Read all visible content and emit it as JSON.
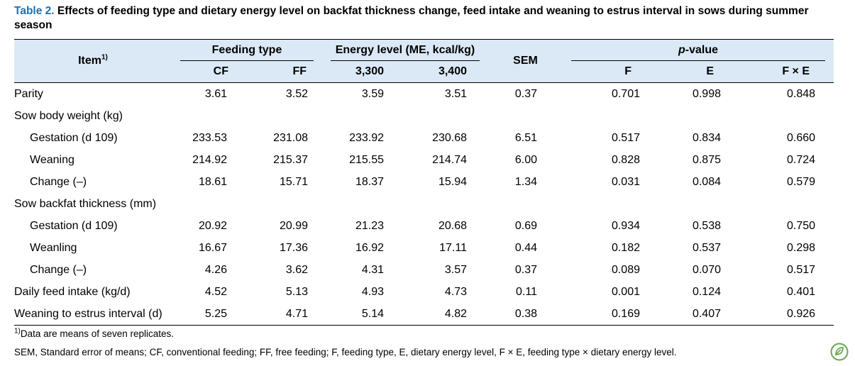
{
  "caption": {
    "label": "Table 2.",
    "text": " Effects of feeding type and dietary energy level on backfat thickness change, feed intake and weaning to estrus interval in sows during summer season"
  },
  "header": {
    "item": "Item",
    "item_sup": "1)",
    "feeding_type": "Feeding type",
    "energy_level": "Energy level (ME, kcal/kg)",
    "sem": "SEM",
    "p_value_italic": "p",
    "p_value_rest": "-value",
    "cf": "CF",
    "ff": "FF",
    "e3300": "3,300",
    "e3400": "3,400",
    "pF": "F",
    "pE": "E",
    "pFxE": "F × E"
  },
  "rows": [
    {
      "label": "Parity",
      "indent": false,
      "values": [
        "3.61",
        "3.52",
        "3.59",
        "3.51",
        "0.37",
        "0.701",
        "0.998",
        "0.848"
      ]
    },
    {
      "label": "Sow body weight (kg)",
      "indent": false,
      "values": [
        "",
        "",
        "",
        "",
        "",
        "",
        "",
        ""
      ]
    },
    {
      "label": "Gestation (d 109)",
      "indent": true,
      "values": [
        "233.53",
        "231.08",
        "233.92",
        "230.68",
        "6.51",
        "0.517",
        "0.834",
        "0.660"
      ]
    },
    {
      "label": "Weaning",
      "indent": true,
      "values": [
        "214.92",
        "215.37",
        "215.55",
        "214.74",
        "6.00",
        "0.828",
        "0.875",
        "0.724"
      ]
    },
    {
      "label": "Change (–)",
      "indent": true,
      "values": [
        "18.61",
        "15.71",
        "18.37",
        "15.94",
        "1.34",
        "0.031",
        "0.084",
        "0.579"
      ]
    },
    {
      "label": "Sow backfat thickness (mm)",
      "indent": false,
      "values": [
        "",
        "",
        "",
        "",
        "",
        "",
        "",
        ""
      ]
    },
    {
      "label": "Gestation (d 109)",
      "indent": true,
      "values": [
        "20.92",
        "20.99",
        "21.23",
        "20.68",
        "0.69",
        "0.934",
        "0.538",
        "0.750"
      ]
    },
    {
      "label": "Weanling",
      "indent": true,
      "values": [
        "16.67",
        "17.36",
        "16.92",
        "17.11",
        "0.44",
        "0.182",
        "0.537",
        "0.298"
      ]
    },
    {
      "label": "Change (–)",
      "indent": true,
      "values": [
        "4.26",
        "3.62",
        "4.31",
        "3.57",
        "0.37",
        "0.089",
        "0.070",
        "0.517"
      ]
    },
    {
      "label": "Daily feed intake (kg/d)",
      "indent": false,
      "values": [
        "4.52",
        "5.13",
        "4.93",
        "4.73",
        "0.11",
        "0.001",
        "0.124",
        "0.401"
      ]
    },
    {
      "label": "Weaning to estrus interval (d)",
      "indent": false,
      "values": [
        "5.25",
        "4.71",
        "5.14",
        "4.82",
        "0.38",
        "0.169",
        "0.407",
        "0.926"
      ]
    }
  ],
  "footnotes": {
    "note1_sup": "1)",
    "note1": "Data are means of seven replicates.",
    "note2": "SEM, Standard error of means; CF, conventional feeding; FF, free feeding; F, feeding type, E, dietary energy level, F × E, feeding type × dietary energy level."
  },
  "colors": {
    "header_bg": "#dbe9f6",
    "caption_label": "#1f6fb2",
    "logo_green": "#6aa84f"
  },
  "icons": {
    "logo": "leaf-badge-icon"
  }
}
